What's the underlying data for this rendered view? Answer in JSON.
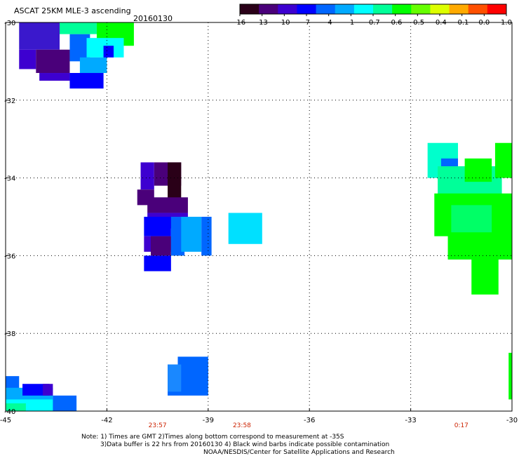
{
  "header": {
    "title": "ASCAT 25KM MLE-3 ascending",
    "date": "20160130"
  },
  "colorbar": {
    "colors": [
      "#2a0018",
      "#4a007a",
      "#3d00d0",
      "#0000ff",
      "#0066ff",
      "#00aaff",
      "#00ffff",
      "#00ff99",
      "#00ff00",
      "#66ff00",
      "#ddff00",
      "#ffaa00",
      "#ff5000",
      "#ff0000"
    ],
    "labels": [
      "-16",
      "-13",
      "-10",
      "-7",
      "-4",
      "-1",
      "-0.7",
      "-0.6",
      "-0.5",
      "-0.4",
      "-0.1",
      "0.0",
      "1.0"
    ]
  },
  "chart_data": {
    "type": "heatmap",
    "title": "ASCAT 25KM MLE-3 ascending",
    "date": "20160130",
    "xlabel": "",
    "ylabel": "",
    "xlim": [
      -45,
      -30
    ],
    "ylim": [
      -40,
      -30
    ],
    "x_ticks": [
      "-45",
      "-42",
      "-39",
      "-36",
      "-33",
      "-30"
    ],
    "y_ticks": [
      "-30",
      "-32",
      "-34",
      "-36",
      "-38",
      "-40"
    ],
    "grid": true,
    "times": [
      {
        "label": "23:57",
        "lon": -40.5
      },
      {
        "label": "23:58",
        "lon": -38.0
      },
      {
        "label": "0:17",
        "lon": -31.5
      }
    ],
    "cells": [
      {
        "lon": [
          -44.6,
          -43.4
        ],
        "lat": [
          -30.7,
          -30.0
        ],
        "color": "#3a18cc"
      },
      {
        "lon": [
          -44.6,
          -44.1
        ],
        "lat": [
          -31.2,
          -30.7
        ],
        "color": "#3d00d0"
      },
      {
        "lon": [
          -44.1,
          -43.1
        ],
        "lat": [
          -31.3,
          -30.7
        ],
        "color": "#4a007a"
      },
      {
        "lon": [
          -44.0,
          -43.1
        ],
        "lat": [
          -31.5,
          -31.3
        ],
        "color": "#3d00d0"
      },
      {
        "lon": [
          -43.1,
          -42.5
        ],
        "lat": [
          -31.0,
          -30.3
        ],
        "color": "#0066ff"
      },
      {
        "lon": [
          -43.4,
          -42.3
        ],
        "lat": [
          -30.3,
          -30.0
        ],
        "color": "#00ff99"
      },
      {
        "lon": [
          -42.3,
          -41.2
        ],
        "lat": [
          -30.6,
          -30.0
        ],
        "color": "#00ff00"
      },
      {
        "lon": [
          -42.6,
          -41.5
        ],
        "lat": [
          -30.9,
          -30.4
        ],
        "color": "#00ffff"
      },
      {
        "lon": [
          -42.8,
          -42.0
        ],
        "lat": [
          -31.3,
          -30.9
        ],
        "color": "#00aaff"
      },
      {
        "lon": [
          -42.1,
          -41.8
        ],
        "lat": [
          -30.9,
          -30.6
        ],
        "color": "#0000ff"
      },
      {
        "lon": [
          -43.1,
          -42.1
        ],
        "lat": [
          -31.7,
          -31.3
        ],
        "color": "#0000ff"
      },
      {
        "lon": [
          -41.0,
          -40.6
        ],
        "lat": [
          -34.3,
          -33.6
        ],
        "color": "#3d00d0"
      },
      {
        "lon": [
          -40.6,
          -39.8
        ],
        "lat": [
          -34.2,
          -33.6
        ],
        "color": "#4a007a"
      },
      {
        "lon": [
          -40.2,
          -39.8
        ],
        "lat": [
          -34.6,
          -33.6
        ],
        "color": "#2a0018"
      },
      {
        "lon": [
          -40.8,
          -39.6
        ],
        "lat": [
          -34.9,
          -34.5
        ],
        "color": "#4a007a"
      },
      {
        "lon": [
          -40.8,
          -39.6
        ],
        "lat": [
          -35.3,
          -34.9
        ],
        "color": "#3d00d0"
      },
      {
        "lon": [
          -40.9,
          -40.1
        ],
        "lat": [
          -35.5,
          -35.0
        ],
        "color": "#0000ff"
      },
      {
        "lon": [
          -40.9,
          -40.1
        ],
        "lat": [
          -35.9,
          -35.5
        ],
        "color": "#3d00d0"
      },
      {
        "lon": [
          -40.7,
          -40.1
        ],
        "lat": [
          -36.0,
          -35.5
        ],
        "color": "#4a007a"
      },
      {
        "lon": [
          -40.9,
          -40.1
        ],
        "lat": [
          -36.4,
          -36.0
        ],
        "color": "#0000ff"
      },
      {
        "lon": [
          -40.1,
          -39.7
        ],
        "lat": [
          -36.0,
          -35.0
        ],
        "color": "#0066ff"
      },
      {
        "lon": [
          -39.8,
          -39.2
        ],
        "lat": [
          -35.9,
          -35.0
        ],
        "color": "#00aaff"
      },
      {
        "lon": [
          -39.2,
          -38.9
        ],
        "lat": [
          -36.0,
          -35.0
        ],
        "color": "#0066ff"
      },
      {
        "lon": [
          -38.4,
          -37.4
        ],
        "lat": [
          -35.7,
          -34.9
        ],
        "color": "#00e0ff"
      },
      {
        "lon": [
          -41.1,
          -40.6
        ],
        "lat": [
          -34.7,
          -34.3
        ],
        "color": "#4a007a"
      },
      {
        "lon": [
          -32.5,
          -31.6
        ],
        "lat": [
          -34.0,
          -33.1
        ],
        "color": "#00ffcc"
      },
      {
        "lon": [
          -32.1,
          -31.6
        ],
        "lat": [
          -34.1,
          -33.5
        ],
        "color": "#0066ff"
      },
      {
        "lon": [
          -32.2,
          -30.3
        ],
        "lat": [
          -34.7,
          -33.7
        ],
        "color": "#00ff99"
      },
      {
        "lon": [
          -31.4,
          -30.6
        ],
        "lat": [
          -34.1,
          -33.5
        ],
        "color": "#00ff00"
      },
      {
        "lon": [
          -30.5,
          -30.0
        ],
        "lat": [
          -34.0,
          -33.1
        ],
        "color": "#00ff00"
      },
      {
        "lon": [
          -32.3,
          -30.0
        ],
        "lat": [
          -35.5,
          -34.4
        ],
        "color": "#00ff00"
      },
      {
        "lon": [
          -31.8,
          -30.6
        ],
        "lat": [
          -35.5,
          -34.7
        ],
        "color": "#00ff66"
      },
      {
        "lon": [
          -31.9,
          -30.0
        ],
        "lat": [
          -36.1,
          -35.4
        ],
        "color": "#00ff00"
      },
      {
        "lon": [
          -31.2,
          -30.4
        ],
        "lat": [
          -37.0,
          -36.0
        ],
        "color": "#00ff00"
      },
      {
        "lon": [
          -39.9,
          -39.0
        ],
        "lat": [
          -39.2,
          -38.6
        ],
        "color": "#0066ff"
      },
      {
        "lon": [
          -40.2,
          -39.0
        ],
        "lat": [
          -39.6,
          -38.8
        ],
        "color": "#0066ff"
      },
      {
        "lon": [
          -40.2,
          -39.8
        ],
        "lat": [
          -39.5,
          -38.8
        ],
        "color": "#1a88ff"
      },
      {
        "lon": [
          -30.1,
          -30.0
        ],
        "lat": [
          -39.7,
          -38.5
        ],
        "color": "#00ff00"
      },
      {
        "lon": [
          -45.0,
          -44.6
        ],
        "lat": [
          -39.5,
          -39.1
        ],
        "color": "#0066ff"
      },
      {
        "lon": [
          -45.0,
          -43.6
        ],
        "lat": [
          -39.8,
          -39.4
        ],
        "color": "#00aaff"
      },
      {
        "lon": [
          -44.5,
          -43.7
        ],
        "lat": [
          -39.6,
          -39.3
        ],
        "color": "#0000ff"
      },
      {
        "lon": [
          -43.9,
          -43.6
        ],
        "lat": [
          -39.6,
          -39.3
        ],
        "color": "#3d00d0"
      },
      {
        "lon": [
          -45.0,
          -42.9
        ],
        "lat": [
          -40.0,
          -39.7
        ],
        "color": "#00ffff"
      },
      {
        "lon": [
          -43.6,
          -42.9
        ],
        "lat": [
          -40.0,
          -39.6
        ],
        "color": "#0066ff"
      },
      {
        "lon": [
          -45.0,
          -44.4
        ],
        "lat": [
          -40.0,
          -39.8
        ],
        "color": "#00ff99"
      }
    ]
  },
  "footer": {
    "line1": "Note: 1) Times are GMT 2)Times along bottom correspond to measurement at -35S",
    "line2": "3)Data buffer is 22 hrs from 20160130 4) Black wind barbs indicate possible contamination",
    "line3": "NOAA/NESDIS/Center for Satellite Applications and Research"
  }
}
